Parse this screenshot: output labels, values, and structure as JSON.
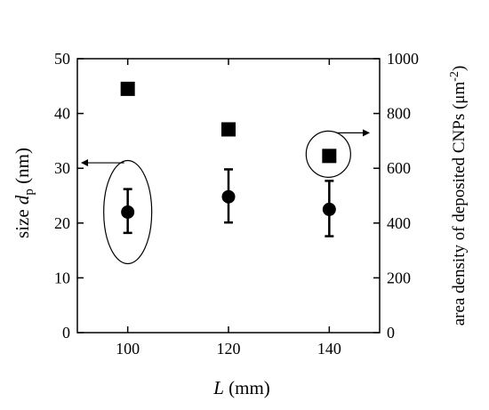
{
  "chart_data": {
    "type": "scatter",
    "x": [
      100,
      120,
      140
    ],
    "xlim": [
      90,
      150
    ],
    "xticks": [
      100,
      120,
      140
    ],
    "xlabel": {
      "symbol": "L",
      "unit": "(mm)"
    },
    "y_left": {
      "label": {
        "prefix": "size ",
        "symbol": "d",
        "subscript": "p",
        "unit": " (nm)"
      },
      "lim": [
        0,
        50
      ],
      "ticks": [
        0,
        10,
        20,
        30,
        40,
        50
      ]
    },
    "y_right": {
      "label": {
        "text": "area density of deposited CNPs (μm",
        "superscript": "-2",
        "suffix": ")"
      },
      "lim": [
        0,
        1000
      ],
      "ticks": [
        0,
        200,
        400,
        600,
        800,
        1000
      ]
    },
    "series": [
      {
        "marker": "circle",
        "axis": "left",
        "values": [
          22,
          24.8,
          22.5
        ],
        "error_low": [
          18.2,
          20.1,
          17.6
        ],
        "error_high": [
          26.2,
          29.8,
          27.7
        ]
      },
      {
        "marker": "square",
        "axis": "right",
        "values": [
          890,
          742,
          645
        ]
      }
    ],
    "annotations": [
      {
        "type": "ellipse-arrow",
        "target_series": 0,
        "points_to": "left-axis"
      },
      {
        "type": "ellipse-arrow",
        "target_series": 1,
        "points_to": "right-axis"
      }
    ],
    "grid": false,
    "legend": "none"
  }
}
